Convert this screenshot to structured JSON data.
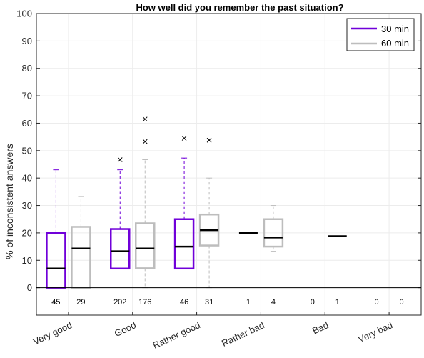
{
  "chart_data": {
    "type": "box",
    "title": "How well did you remember the past situation?",
    "xlabel": "",
    "ylabel": "% of inconsistent answers",
    "ylim": [
      -10,
      100
    ],
    "yticks": [
      0,
      10,
      20,
      30,
      40,
      50,
      60,
      70,
      80,
      90,
      100
    ],
    "grid": true,
    "legend_position": "top-right",
    "categories": [
      "Very good",
      "Good",
      "Rather good",
      "Rather bad",
      "Bad",
      "Very bad"
    ],
    "series": [
      {
        "name": "30 min",
        "color": "#7000d9",
        "boxes": [
          {
            "min": 0,
            "q1": 0,
            "median": 7,
            "q3": 20,
            "max": 43,
            "outliers": [],
            "n": "45"
          },
          {
            "min": 7,
            "q1": 7,
            "median": 13.3,
            "q3": 21.4,
            "max": 43,
            "outliers": [
              46.7
            ],
            "n": "202"
          },
          {
            "min": 7,
            "q1": 7,
            "median": 15,
            "q3": 25,
            "max": 47.3,
            "outliers": [
              54.5
            ],
            "n": "46"
          },
          {
            "min": 20,
            "q1": 20,
            "median": 20,
            "q3": 20,
            "max": 20,
            "outliers": [],
            "n": "1"
          },
          {
            "n": "0"
          },
          {
            "n": "0"
          }
        ]
      },
      {
        "name": "60 min",
        "color": "#bdbdbd",
        "boxes": [
          {
            "min": 0,
            "q1": 0,
            "median": 14.3,
            "q3": 22.2,
            "max": 33.3,
            "outliers": [],
            "n": "29"
          },
          {
            "min": 0,
            "q1": 7.1,
            "median": 14.3,
            "q3": 23.5,
            "max": 46.7,
            "outliers": [
              53.3,
              61.5
            ],
            "n": "176"
          },
          {
            "min": 0,
            "q1": 15.4,
            "median": 21,
            "q3": 26.7,
            "max": 40,
            "outliers": [
              53.8
            ],
            "n": "31"
          },
          {
            "min": 13.3,
            "q1": 15,
            "median": 18.3,
            "q3": 25,
            "max": 30,
            "outliers": [],
            "n": "4"
          },
          {
            "min": 18.8,
            "q1": 18.8,
            "median": 18.8,
            "q3": 18.8,
            "max": 18.8,
            "outliers": [],
            "n": "1"
          },
          {
            "n": "0"
          }
        ]
      }
    ]
  }
}
